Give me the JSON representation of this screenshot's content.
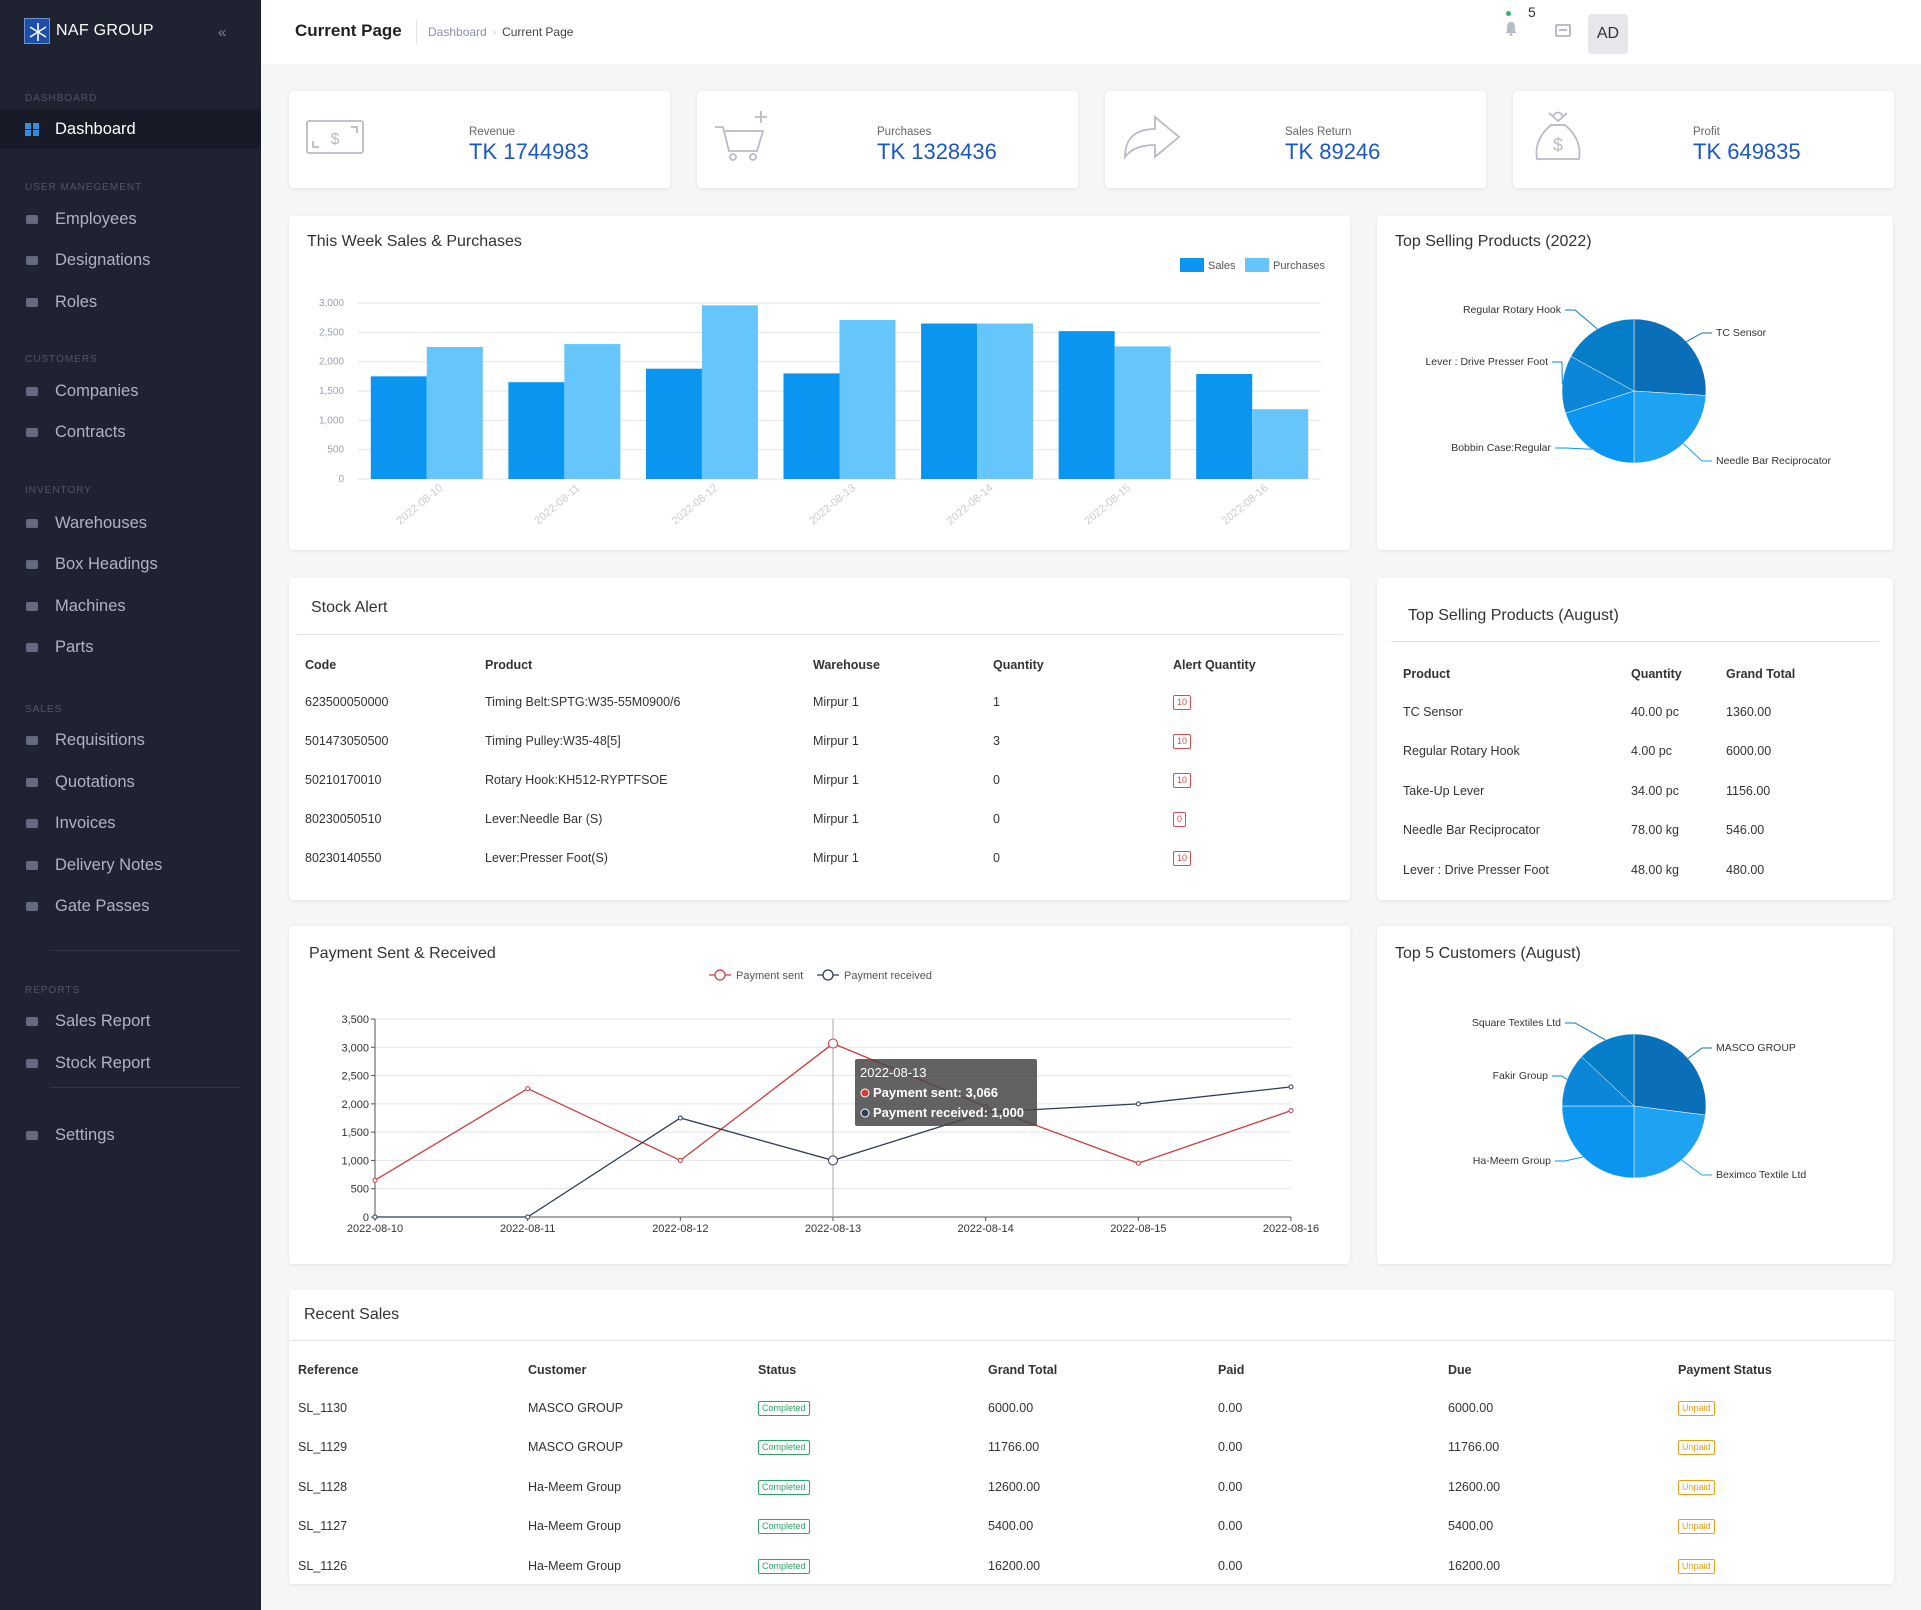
{
  "app": {
    "brand": "NAF GROUP"
  },
  "sidebar": {
    "sections": [
      {
        "title": "DASHBOARD",
        "items": [
          {
            "label": "Dashboard",
            "active": true
          }
        ]
      },
      {
        "title": "USER MANEGEMENT",
        "items": [
          {
            "label": "Employees"
          },
          {
            "label": "Designations"
          },
          {
            "label": "Roles"
          }
        ]
      },
      {
        "title": "CUSTOMERS",
        "items": [
          {
            "label": "Companies"
          },
          {
            "label": "Contracts"
          }
        ]
      },
      {
        "title": "INVENTORY",
        "items": [
          {
            "label": "Warehouses"
          },
          {
            "label": "Box Headings"
          },
          {
            "label": "Machines"
          },
          {
            "label": "Parts"
          }
        ]
      },
      {
        "title": "SALES",
        "items": [
          {
            "label": "Requisitions"
          },
          {
            "label": "Quotations"
          },
          {
            "label": "Invoices"
          },
          {
            "label": "Delivery Notes"
          },
          {
            "label": "Gate Passes"
          }
        ]
      },
      {
        "title": "REPORTS",
        "items": [
          {
            "label": "Sales Report"
          },
          {
            "label": "Stock Report"
          }
        ]
      },
      {
        "title": "",
        "items": [
          {
            "label": "Settings"
          }
        ]
      }
    ]
  },
  "header": {
    "title": "Current Page",
    "breadcrumb": [
      "Dashboard",
      "Current Page"
    ],
    "notification_count": "5",
    "avatar": "AD"
  },
  "stats": [
    {
      "label": "Revenue",
      "value": "TK 1744983",
      "icon": "money-bill-icon"
    },
    {
      "label": "Purchases",
      "value": "TK 1328436",
      "icon": "cart-plus-icon"
    },
    {
      "label": "Sales Return",
      "value": "TK 89246",
      "icon": "share-arrow-icon"
    },
    {
      "label": "Profit",
      "value": "TK 649835",
      "icon": "money-bag-icon"
    }
  ],
  "colors": {
    "sales": "#0a96f0",
    "purchases": "#66c6fc",
    "payment_sent": "#d23a3a",
    "payment_received": "#2f3d52",
    "pie": [
      "#0a6fb8",
      "#1ea3f2",
      "#0a96f0",
      "#0c86d8",
      "#057dc8"
    ]
  },
  "weekly_chart": {
    "title": "This Week Sales & Purchases",
    "chart_data": {
      "type": "bar",
      "categories": [
        "2022-08-10",
        "2022-08-11",
        "2022-08-12",
        "2022-08-13",
        "2022-08-14",
        "2022-08-15",
        "2022-08-16"
      ],
      "series": [
        {
          "name": "Sales",
          "values": [
            1750,
            1650,
            1880,
            1800,
            2650,
            2520,
            1790
          ]
        },
        {
          "name": "Purchases",
          "values": [
            2250,
            2300,
            2960,
            2710,
            2650,
            2260,
            1190
          ]
        }
      ],
      "ylim": [
        0,
        3000
      ],
      "yticks": [
        "0",
        "500",
        "1,000",
        "1,500",
        "2,000",
        "2,500",
        "3,000"
      ],
      "legend": "top-right"
    }
  },
  "top_products_2022": {
    "title": "Top Selling Products (2022)",
    "chart_data": {
      "type": "pie",
      "labels": [
        "TC Sensor",
        "Needle Bar Reciprocator",
        "Bobbin Case:Regular",
        "Lever : Drive Presser Foot",
        "Regular Rotary Hook"
      ],
      "values": [
        26,
        24,
        20,
        13,
        17
      ]
    }
  },
  "stock_alert": {
    "title": "Stock Alert",
    "columns": [
      "Code",
      "Product",
      "Warehouse",
      "Quantity",
      "Alert Quantity"
    ],
    "rows": [
      [
        "623500050000",
        "Timing Belt:SPTG:W35-55M0900/6",
        "Mirpur 1",
        "1",
        "10"
      ],
      [
        "501473050500",
        "Timing Pulley:W35-48[5]",
        "Mirpur 1",
        "3",
        "10"
      ],
      [
        "50210170010",
        "Rotary Hook:KH512-RYPTFSOE",
        "Mirpur 1",
        "0",
        "10"
      ],
      [
        "80230050510",
        "Lever:Needle Bar (S)",
        "Mirpur 1",
        "0",
        "0"
      ],
      [
        "80230140550",
        "Lever:Presser Foot(S)",
        "Mirpur 1",
        "0",
        "10"
      ]
    ]
  },
  "top_products_august": {
    "title": "Top Selling Products (August)",
    "columns": [
      "Product",
      "Quantity",
      "Grand Total"
    ],
    "rows": [
      [
        "TC Sensor",
        "40.00 pc",
        "1360.00"
      ],
      [
        "Regular Rotary Hook",
        "4.00 pc",
        "6000.00"
      ],
      [
        "Take-Up Lever",
        "34.00 pc",
        "1156.00"
      ],
      [
        "Needle Bar Reciprocator",
        "78.00 kg",
        "546.00"
      ],
      [
        "Lever : Drive Presser Foot",
        "48.00 kg",
        "480.00"
      ]
    ]
  },
  "payment_chart": {
    "title": "Payment Sent & Received",
    "chart_data": {
      "type": "line",
      "x": [
        "2022-08-10",
        "2022-08-11",
        "2022-08-12",
        "2022-08-13",
        "2022-08-14",
        "2022-08-15",
        "2022-08-16"
      ],
      "series": [
        {
          "name": "Payment sent",
          "values": [
            650,
            2270,
            1000,
            3066,
            1950,
            950,
            1880
          ]
        },
        {
          "name": "Payment received",
          "values": [
            0,
            0,
            1750,
            1000,
            1850,
            2000,
            2300
          ]
        }
      ],
      "ylim": [
        0,
        3500
      ],
      "yticks": [
        "0",
        "500",
        "1,000",
        "1,500",
        "2,000",
        "2,500",
        "3,000",
        "3,500"
      ],
      "legend": "top-center",
      "tooltip": {
        "title": "2022-08-13",
        "lines": [
          "Payment sent: 3,066",
          "Payment received: 1,000"
        ]
      }
    }
  },
  "top_customers": {
    "title": "Top 5 Customers (August)",
    "chart_data": {
      "type": "pie",
      "labels": [
        "MASCO GROUP",
        "Beximco Textile Ltd",
        "Ha-Meem Group",
        "Fakir Group",
        "Square Textiles Ltd"
      ],
      "values": [
        27,
        23,
        25,
        12,
        13
      ]
    }
  },
  "recent_sales": {
    "title": "Recent Sales",
    "columns": [
      "Reference",
      "Customer",
      "Status",
      "Grand Total",
      "Paid",
      "Due",
      "Payment Status"
    ],
    "rows": [
      [
        "SL_1130",
        "MASCO GROUP",
        "Completed",
        "6000.00",
        "0.00",
        "6000.00",
        "Unpaid"
      ],
      [
        "SL_1129",
        "MASCO GROUP",
        "Completed",
        "11766.00",
        "0.00",
        "11766.00",
        "Unpaid"
      ],
      [
        "SL_1128",
        "Ha-Meem Group",
        "Completed",
        "12600.00",
        "0.00",
        "12600.00",
        "Unpaid"
      ],
      [
        "SL_1127",
        "Ha-Meem Group",
        "Completed",
        "5400.00",
        "0.00",
        "5400.00",
        "Unpaid"
      ],
      [
        "SL_1126",
        "Ha-Meem Group",
        "Completed",
        "16200.00",
        "0.00",
        "16200.00",
        "Unpaid"
      ]
    ]
  }
}
